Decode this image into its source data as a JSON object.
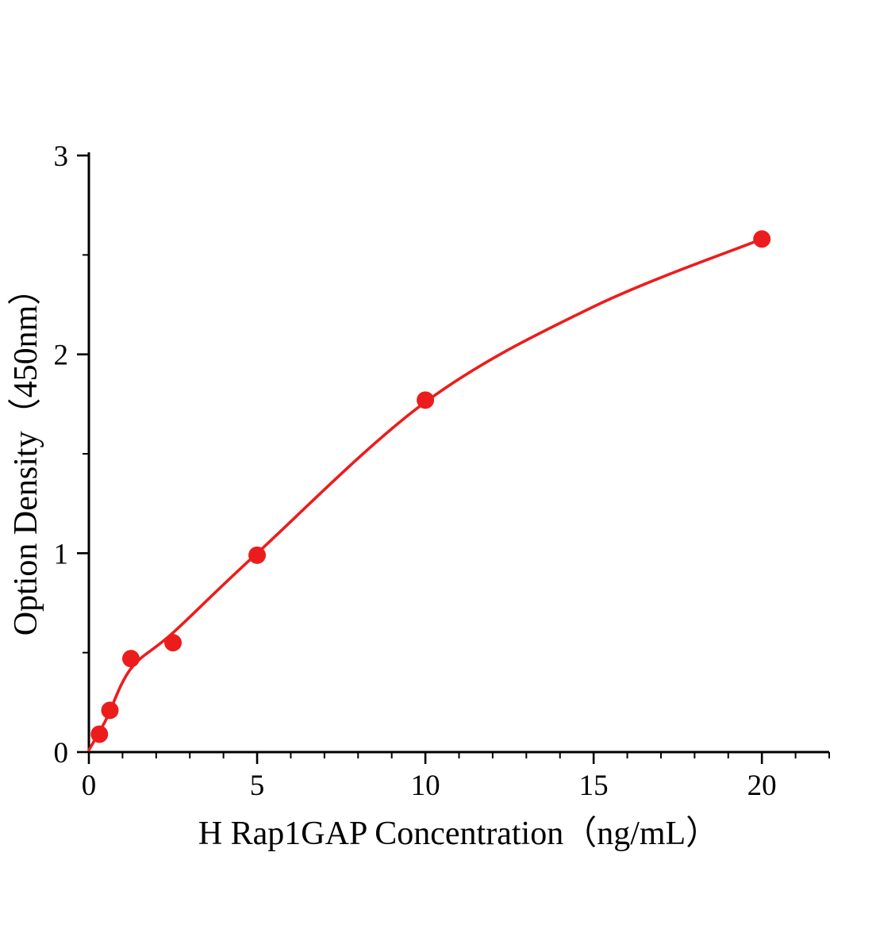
{
  "chart_data": {
    "type": "scatter",
    "title": "",
    "xlabel": "H Rap1GAP Concentration（ng/mL）",
    "ylabel": "Option Density（450nm）",
    "x": [
      0.313,
      0.625,
      1.25,
      2.5,
      5,
      10,
      20
    ],
    "y": [
      0.09,
      0.21,
      0.47,
      0.55,
      0.99,
      1.77,
      2.58
    ],
    "curve_points": [
      {
        "x": 0,
        "y": 0.01
      },
      {
        "x": 0.5,
        "y": 0.16
      },
      {
        "x": 1.25,
        "y": 0.42
      },
      {
        "x": 2.5,
        "y": 0.6
      },
      {
        "x": 5,
        "y": 1.0
      },
      {
        "x": 10,
        "y": 1.76
      },
      {
        "x": 15,
        "y": 2.24
      },
      {
        "x": 20,
        "y": 2.58
      }
    ],
    "xlim": [
      0,
      22
    ],
    "ylim": [
      0,
      3
    ],
    "x_major_ticks": [
      0,
      5,
      10,
      15,
      20
    ],
    "y_major_ticks": [
      0,
      1,
      2,
      3
    ],
    "x_minor_step": 1,
    "y_minor_step": 0.5,
    "grid": false,
    "legend": "none",
    "colors": {
      "point": "#ed1c1c",
      "curve": "#ed1c1c",
      "axis": "#000000",
      "background": "#ffffff"
    }
  }
}
